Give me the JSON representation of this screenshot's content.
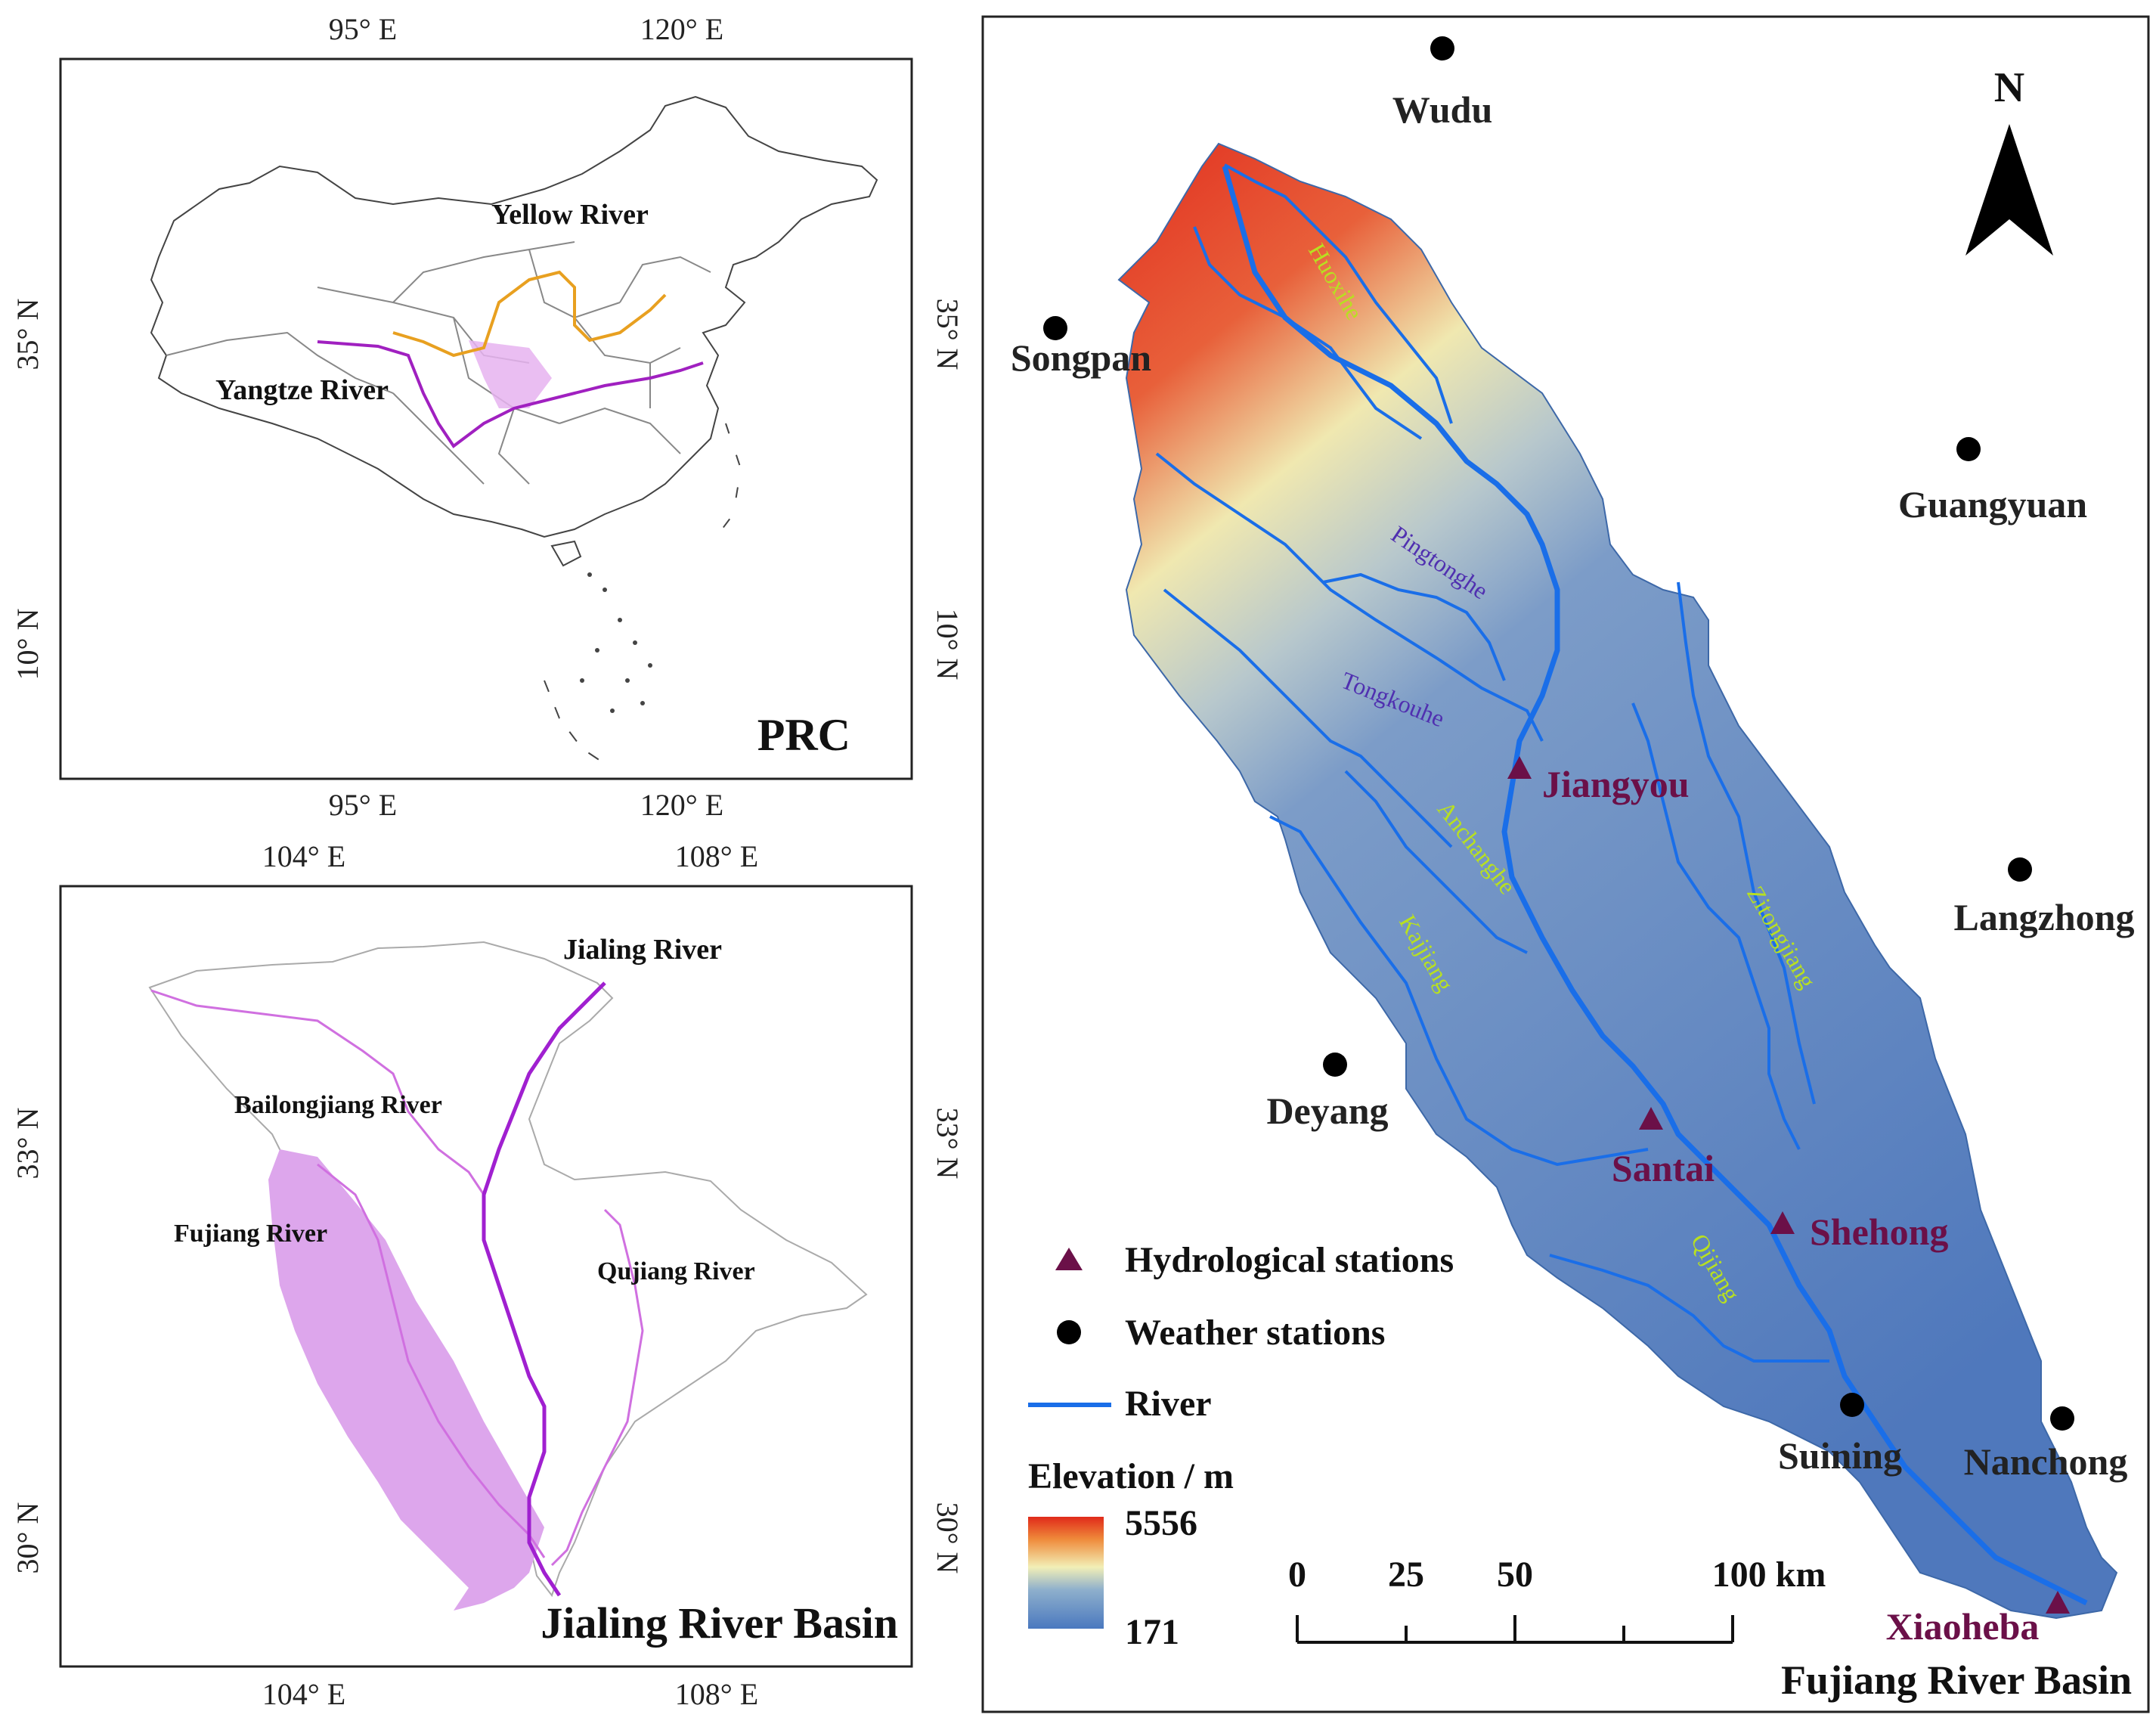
{
  "prc_map": {
    "title": "PRC",
    "top_ticks": [
      "95° E",
      "120° E"
    ],
    "bottom_ticks": [
      "95° E",
      "120° E"
    ],
    "left_ticks": [
      "35° N",
      "10° N"
    ],
    "right_ticks": [
      "35° N",
      "10° N"
    ],
    "yellow_river_label": "Yellow River",
    "yangtze_river_label": "Yangtze River",
    "colors": {
      "yellow_river": "#e8a020",
      "yangtze_river": "#a020c0",
      "basin_fill": "#e6b3f0"
    }
  },
  "jialing_map": {
    "title": "Jialing River Basin",
    "top_ticks": [
      "104° E",
      "108° E"
    ],
    "bottom_ticks": [
      "104° E",
      "108° E"
    ],
    "left_ticks": [
      "33° N",
      "30° N"
    ],
    "right_ticks": [
      "33° N",
      "30° N"
    ],
    "rivers": {
      "jialing": "Jialing River",
      "bailongjiang": "Bailongjiang River",
      "fujiang": "Fujiang River",
      "qujiang": "Qujiang River"
    },
    "colors": {
      "jialing": "#a020d0",
      "tributary": "#d070e0",
      "fujiang_fill": "#dda6ec"
    }
  },
  "fujiang_map": {
    "title": "Fujiang River Basin",
    "north_label": "N",
    "weather_stations": [
      "Wudu",
      "Songpan",
      "Guangyuan",
      "Langzhong",
      "Deyang",
      "Suining",
      "Nanchong"
    ],
    "hydro_stations": [
      "Jiangyou",
      "Santai",
      "Shehong",
      "Xiaoheba"
    ],
    "rivers": [
      "Huoxihe",
      "Pingtonghe",
      "Tongkouhe",
      "Anchanghe",
      "Kajjiang",
      "Zitongjiang",
      "Qijiang"
    ],
    "legend": {
      "hydro": "Hydrological stations",
      "weather": "Weather stations",
      "river": "River",
      "elevation_title": "Elevation / m",
      "elev_max": "5556",
      "elev_min": "171"
    },
    "scale": {
      "ticks": [
        "0",
        "25",
        "50",
        "100 km"
      ]
    },
    "colors": {
      "river": "#1a6ee8",
      "hydro_station": "#6b1048",
      "station_label": "#6b1048",
      "trib_label_purple": "#5030b0",
      "trib_label_green": "#b8e020"
    }
  }
}
